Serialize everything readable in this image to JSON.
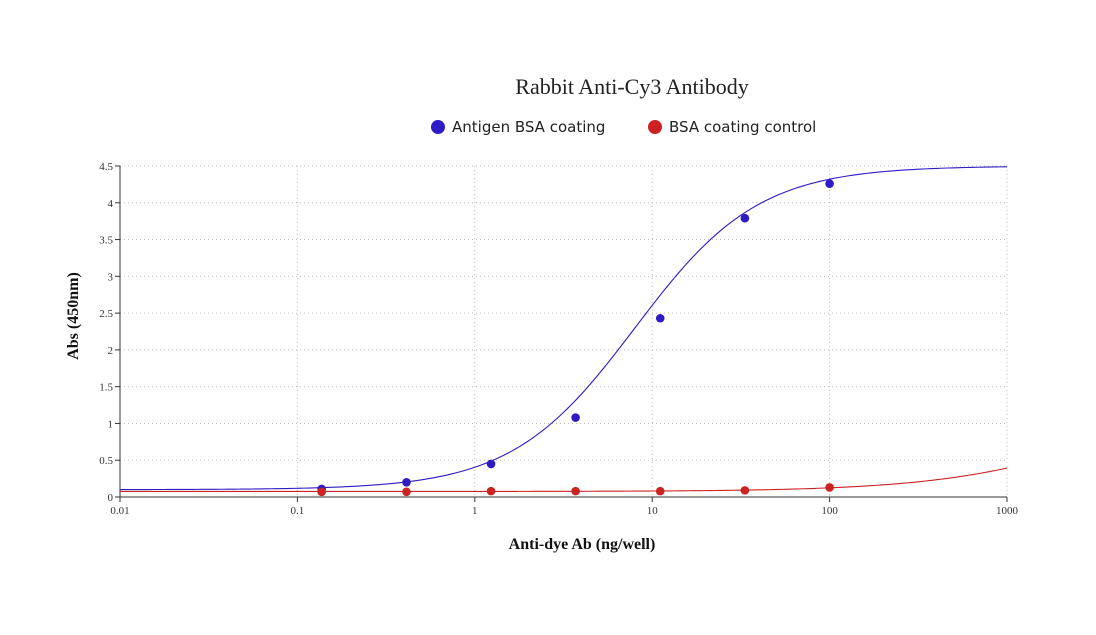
{
  "chart_data": {
    "type": "scatter",
    "title": "Rabbit Anti-Cy3 Antibody",
    "xlabel": "Anti-dye Ab (ng/well)",
    "ylabel": "Abs (450nm)",
    "x_scale": "log",
    "xlim": [
      0.01,
      1000
    ],
    "ylim": [
      0,
      4.5
    ],
    "x_ticks": [
      "0.01",
      "0.1",
      "1",
      "10",
      "100",
      "1000"
    ],
    "y_ticks": [
      "0",
      "0.5",
      "1",
      "1.5",
      "2",
      "2.5",
      "3",
      "3.5",
      "4",
      "4.5"
    ],
    "grid": true,
    "legend_position": "top-center",
    "series": [
      {
        "name": "Antigen BSA coating",
        "color": "#2e1bc4",
        "x": [
          0.137,
          0.412,
          1.235,
          3.7,
          11.1,
          33.3,
          100
        ],
        "y": [
          0.11,
          0.2,
          0.45,
          1.08,
          2.43,
          3.79,
          4.26
        ],
        "fit": {
          "bottom": 0.1,
          "top": 4.5,
          "ec50": 8.0,
          "hill": 1.25
        }
      },
      {
        "name": "BSA coating control",
        "color": "#cc2222",
        "x": [
          0.137,
          0.412,
          1.235,
          3.7,
          11.1,
          33.3,
          100
        ],
        "y": [
          0.07,
          0.07,
          0.08,
          0.08,
          0.08,
          0.09,
          0.13
        ],
        "fit": {
          "bottom": 0.075,
          "top": 1.5,
          "ec50": 4000,
          "hill": 0.9
        }
      }
    ]
  }
}
